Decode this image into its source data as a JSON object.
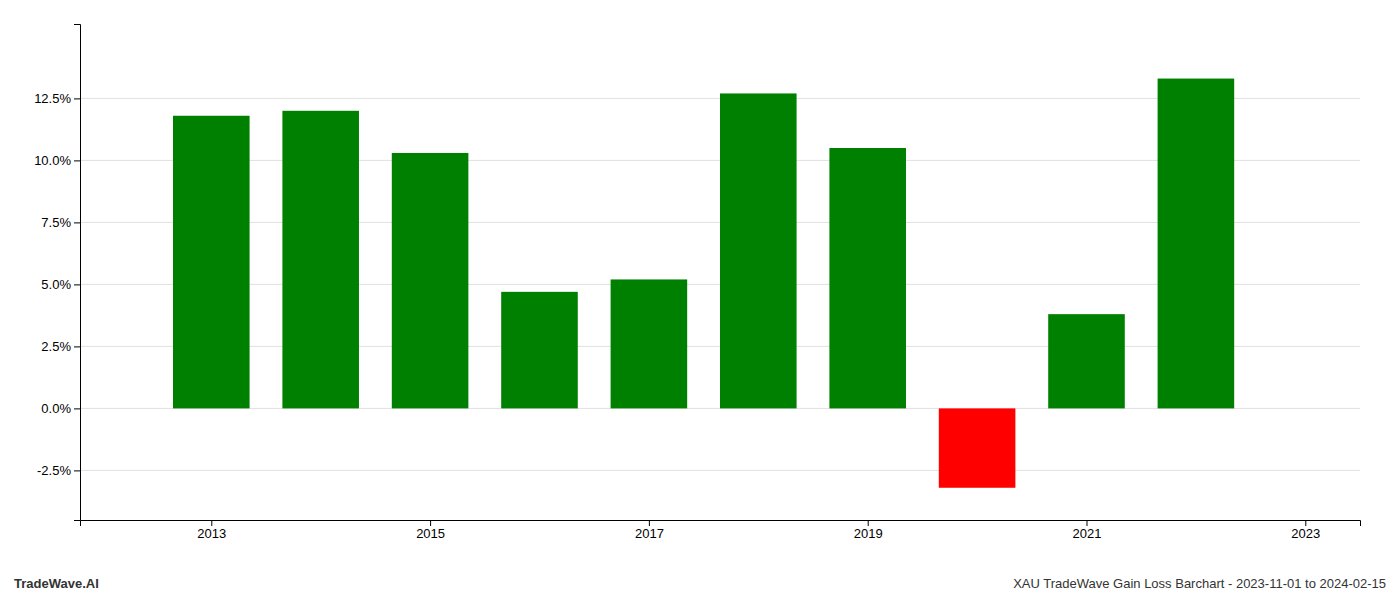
{
  "chart_data": {
    "type": "bar",
    "x": [
      2013,
      2014,
      2015,
      2016,
      2017,
      2018,
      2019,
      2020,
      2021,
      2022
    ],
    "values": [
      0.118,
      0.12,
      0.103,
      0.047,
      0.052,
      0.127,
      0.105,
      -0.032,
      0.038,
      0.133
    ],
    "colors": [
      "#008000",
      "#008000",
      "#008000",
      "#008000",
      "#008000",
      "#008000",
      "#008000",
      "#ff0000",
      "#008000",
      "#008000"
    ],
    "xlim": [
      2011.8,
      2023.5
    ],
    "xticks": [
      2013,
      2015,
      2017,
      2019,
      2021,
      2023
    ],
    "ylim": [
      -0.045,
      0.155
    ],
    "yticks": [
      {
        "value": -0.025,
        "label": "-2.5%"
      },
      {
        "value": 0.0,
        "label": "0.0%"
      },
      {
        "value": 0.025,
        "label": "2.5%"
      },
      {
        "value": 0.05,
        "label": "5.0%"
      },
      {
        "value": 0.075,
        "label": "7.5%"
      },
      {
        "value": 0.1,
        "label": "10.0%"
      },
      {
        "value": 0.125,
        "label": "12.5%"
      }
    ],
    "grid": true,
    "annotations": [
      "TradeWave.AI",
      "XAU TradeWave Gain Loss Barchart - 2023-11-01 to 2024-02-15"
    ]
  }
}
